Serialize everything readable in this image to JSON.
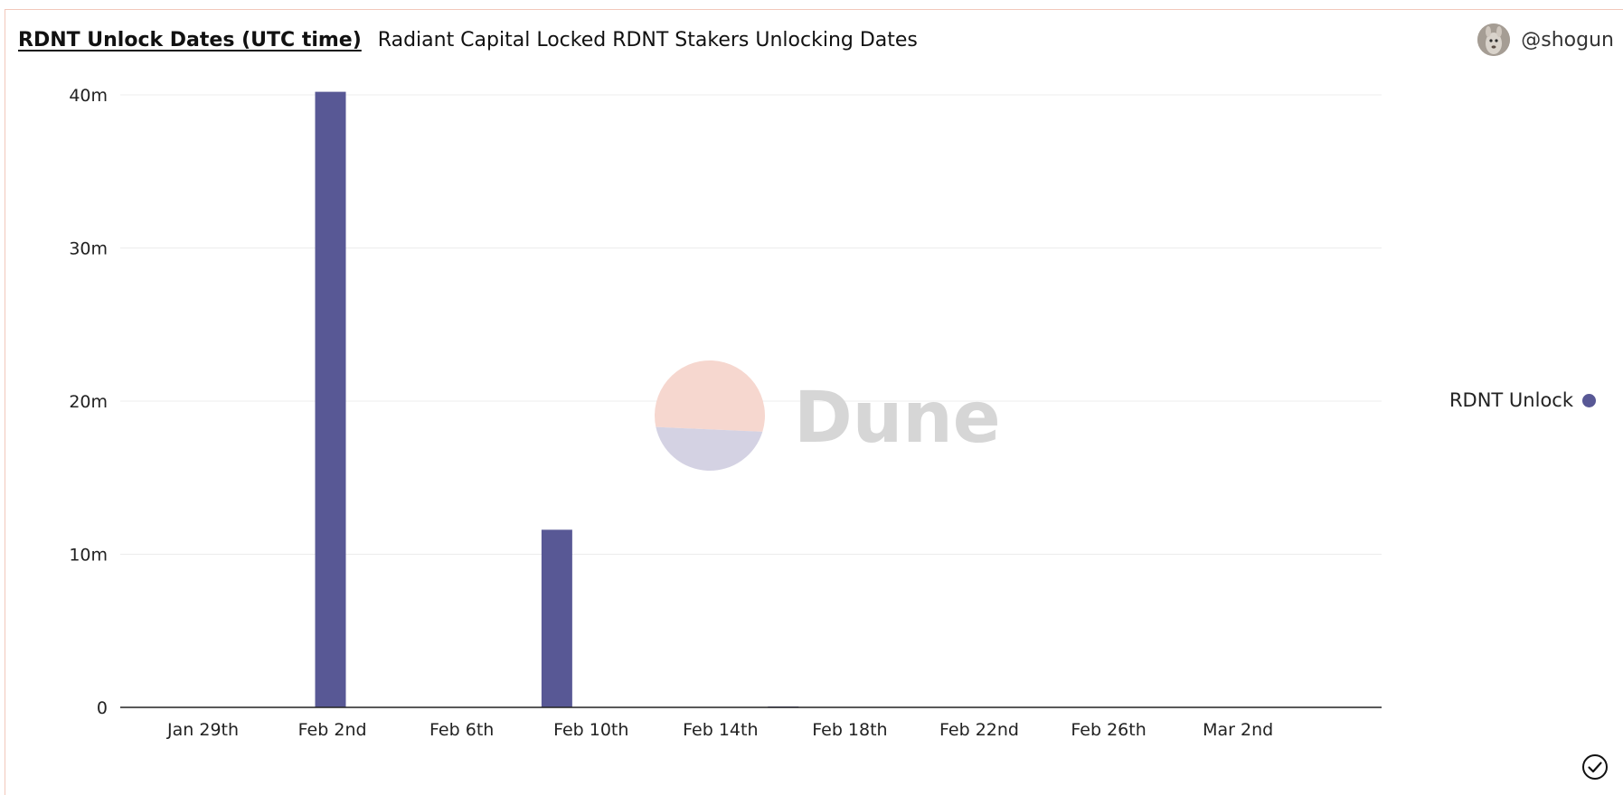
{
  "header": {
    "title": "RDNT Unlock Dates (UTC time)",
    "subtitle": "Radiant Capital Locked RDNT Stakers Unlocking Dates"
  },
  "author": {
    "handle": "@shogun"
  },
  "watermark": {
    "text": "Dune"
  },
  "colors": {
    "series": "#585895",
    "frame": "#f2c8bb",
    "watermark_top": "#f6d7cf",
    "watermark_bottom": "#d4d2e3"
  },
  "icons": {
    "avatar": "kangaroo-avatar-icon",
    "status": "check-circle-icon"
  },
  "chart_data": {
    "type": "bar",
    "title": "RDNT Unlock Dates (UTC time)",
    "subtitle": "Radiant Capital Locked RDNT Stakers Unlocking Dates",
    "xlabel": "",
    "ylabel": "",
    "x_axis": {
      "type": "date",
      "min": "2023-01-27",
      "max": "2023-03-07",
      "tick_labels": [
        "Jan 29th",
        "Feb 2nd",
        "Feb 6th",
        "Feb 10th",
        "Feb 14th",
        "Feb 18th",
        "Feb 22nd",
        "Feb 26th",
        "Mar 2nd"
      ],
      "tick_dates": [
        "2023-01-29",
        "2023-02-02",
        "2023-02-06",
        "2023-02-10",
        "2023-02-14",
        "2023-02-18",
        "2023-02-22",
        "2023-02-26",
        "2023-03-02"
      ]
    },
    "y_axis": {
      "min": 0,
      "max": 40000000,
      "ticks": [
        0,
        10000000,
        20000000,
        30000000,
        40000000
      ],
      "tick_labels": [
        "0",
        "10m",
        "20m",
        "30m",
        "40m"
      ]
    },
    "grid": true,
    "legend": {
      "position": "right",
      "entries": [
        "RDNT Unlock"
      ]
    },
    "series": [
      {
        "name": "RDNT Unlock",
        "color": "#585895",
        "points": [
          {
            "date": "2023-02-02",
            "value": 40200000
          },
          {
            "date": "2023-02-09",
            "value": 11600000
          },
          {
            "date": "2023-02-16",
            "value": 50000
          }
        ]
      }
    ]
  }
}
